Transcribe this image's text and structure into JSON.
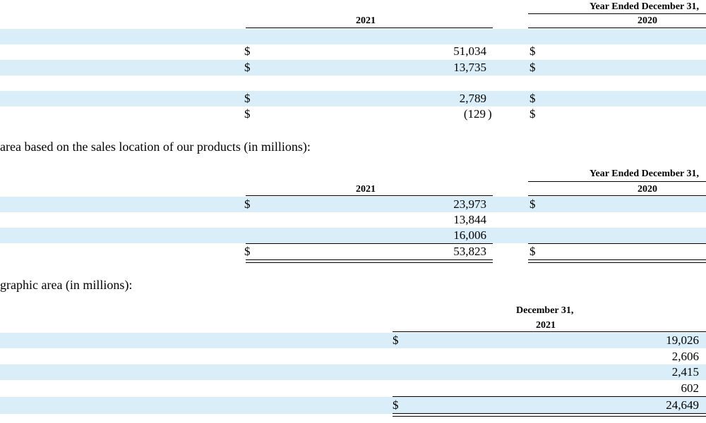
{
  "section1": {
    "header_right": "Year Ended December 31,",
    "col_2021": "2021",
    "col_2020": "2020",
    "rows": [
      {
        "d1": "$",
        "v2021": "51,034",
        "d2": "$"
      },
      {
        "d1": "$",
        "v2021": "13,735",
        "d2": "$"
      },
      {
        "d1": "$",
        "v2021": "2,789",
        "d2": "$"
      },
      {
        "d1": "$",
        "v2021": "(129",
        "paren": ")",
        "d2": "$"
      }
    ]
  },
  "prose1": "area based on the sales location of our products (in millions):",
  "section2": {
    "header_right": "Year Ended December 31,",
    "col_2021": "2021",
    "col_2020": "2020",
    "rows": [
      {
        "d1": "$",
        "v2021": "23,973",
        "d2": "$"
      },
      {
        "d1": "",
        "v2021": "13,844",
        "d2": ""
      },
      {
        "d1": "",
        "v2021": "16,006",
        "d2": ""
      },
      {
        "d1": "$",
        "v2021": "53,823",
        "d2": "$"
      }
    ]
  },
  "prose2": "graphic area (in millions):",
  "section3": {
    "header_line1": "December 31,",
    "header_line2": "2021",
    "rows": [
      {
        "d": "$",
        "v": "19,026"
      },
      {
        "d": "",
        "v": "2,606"
      },
      {
        "d": "",
        "v": "2,415"
      },
      {
        "d": "",
        "v": "602"
      },
      {
        "d": "$",
        "v": "24,649"
      }
    ]
  }
}
